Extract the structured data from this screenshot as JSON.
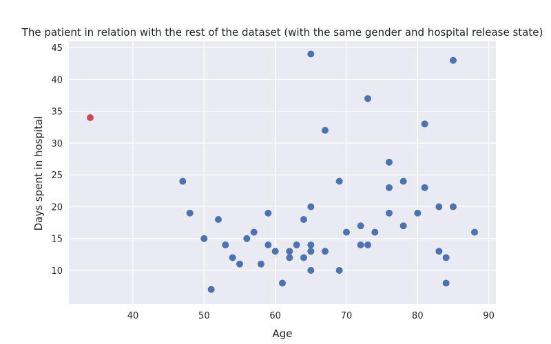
{
  "chart_data": {
    "type": "scatter",
    "title": "The patient in relation with the rest of the dataset (with the same gender and hospital release state)",
    "xlabel": "Age",
    "ylabel": "Days spent in hospital",
    "xlim": [
      31,
      91
    ],
    "ylim": [
      4.7,
      46
    ],
    "xticks": [
      40,
      50,
      60,
      70,
      80,
      90
    ],
    "yticks": [
      10,
      15,
      20,
      25,
      30,
      35,
      40,
      45
    ],
    "grid": true,
    "colors": {
      "dataset": "#4c72b0",
      "patient": "#c44e52",
      "background": "#eaeaf2"
    },
    "series": [
      {
        "points": [
          [
            47,
            24
          ],
          [
            48,
            19
          ],
          [
            50,
            15
          ],
          [
            51,
            7
          ],
          [
            52,
            18
          ],
          [
            53,
            14
          ],
          [
            54,
            12
          ],
          [
            55,
            11
          ],
          [
            56,
            15
          ],
          [
            57,
            16
          ],
          [
            58,
            11
          ],
          [
            59,
            19
          ],
          [
            59,
            14
          ],
          [
            60,
            13
          ],
          [
            61,
            8
          ],
          [
            62,
            13
          ],
          [
            62,
            12
          ],
          [
            63,
            14
          ],
          [
            64,
            18
          ],
          [
            64,
            12
          ],
          [
            65,
            44
          ],
          [
            65,
            20
          ],
          [
            65,
            14
          ],
          [
            65,
            13
          ],
          [
            65,
            10
          ],
          [
            67,
            32
          ],
          [
            67,
            13
          ],
          [
            69,
            24
          ],
          [
            69,
            10
          ],
          [
            70,
            16
          ],
          [
            72,
            17
          ],
          [
            72,
            14
          ],
          [
            73,
            37
          ],
          [
            73,
            14
          ],
          [
            74,
            16
          ],
          [
            76,
            27
          ],
          [
            76,
            23
          ],
          [
            76,
            19
          ],
          [
            78,
            24
          ],
          [
            78,
            17
          ],
          [
            80,
            19
          ],
          [
            81,
            33
          ],
          [
            81,
            23
          ],
          [
            83,
            20
          ],
          [
            83,
            13
          ],
          [
            84,
            12
          ],
          [
            84,
            8
          ],
          [
            85,
            43
          ],
          [
            85,
            20
          ],
          [
            88,
            16
          ]
        ]
      },
      {
        "points": [
          [
            34,
            34
          ]
        ]
      }
    ]
  }
}
